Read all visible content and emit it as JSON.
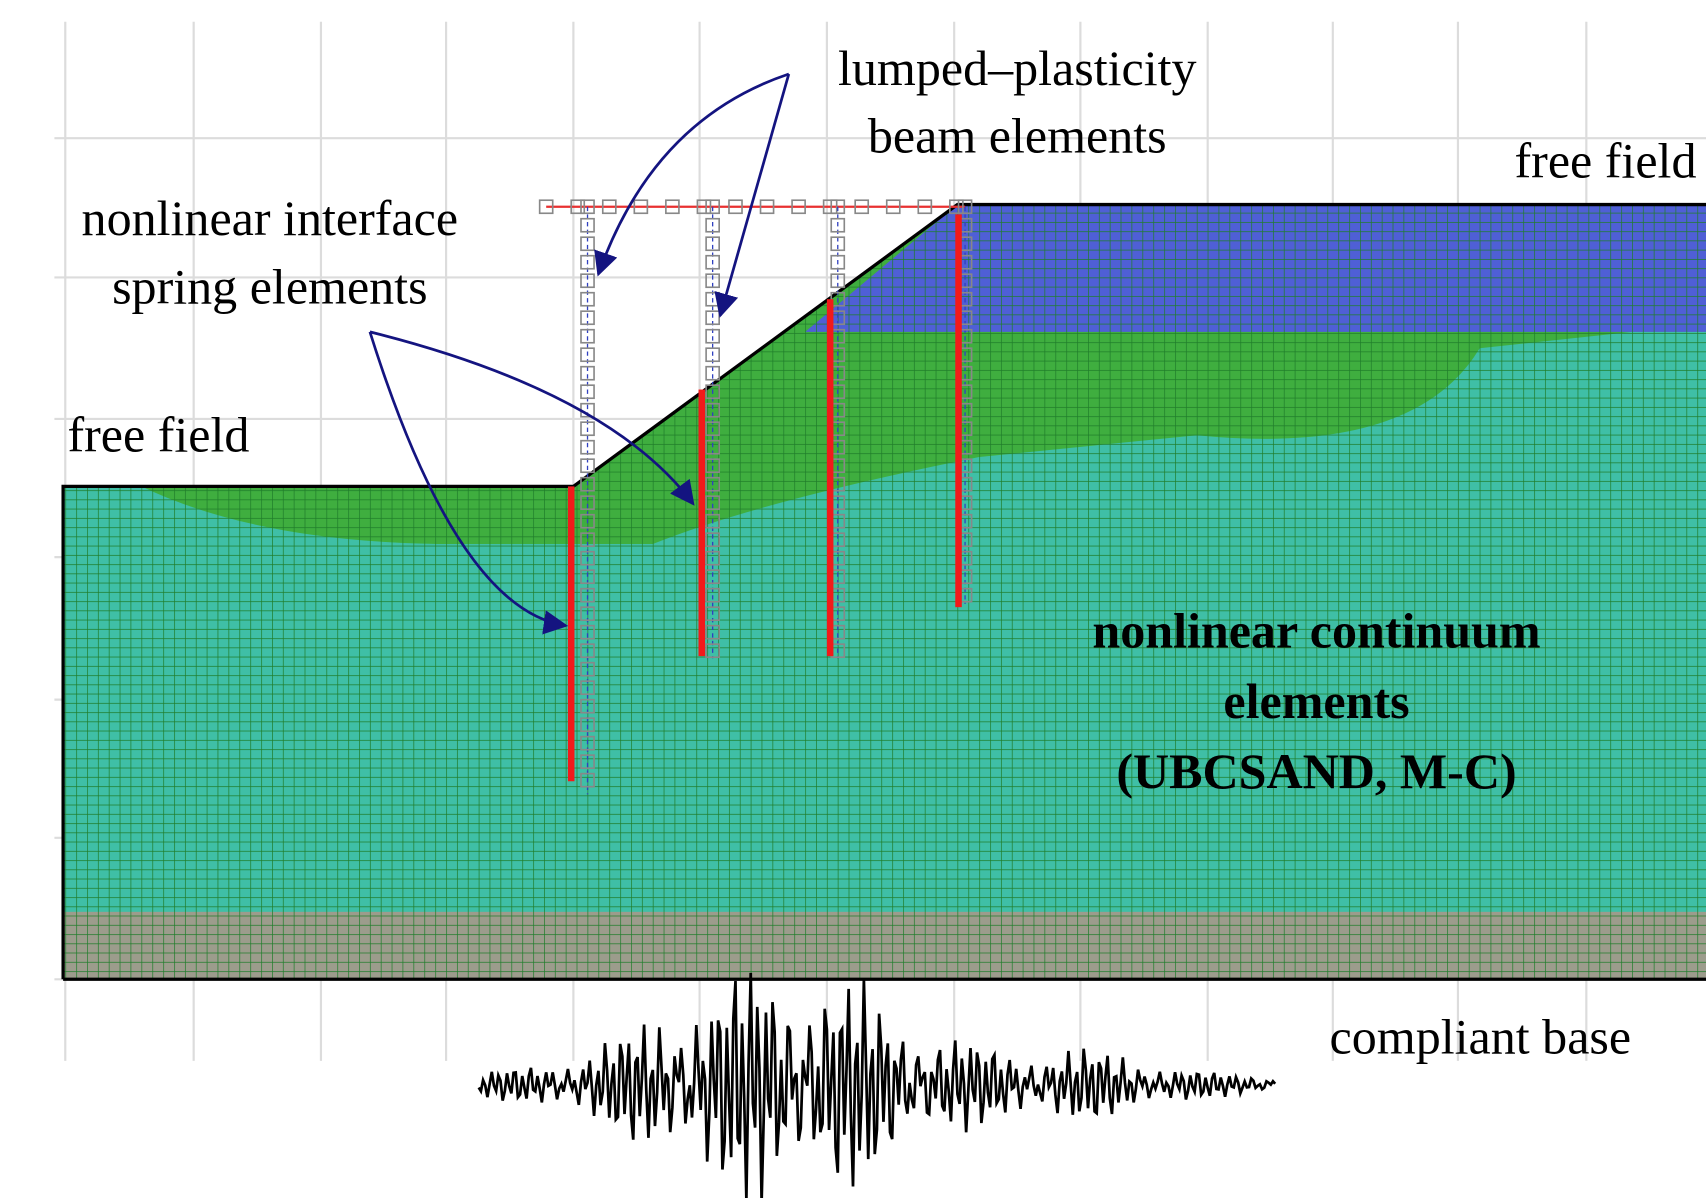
{
  "annotations": {
    "lumped_plasticity": [
      "lumped–plasticity",
      "beam elements"
    ],
    "interface_springs": [
      "nonlinear interface",
      "spring elements"
    ],
    "free_field_left": "free field",
    "free_field_right": "free field",
    "continuum": [
      "nonlinear  continuum",
      "elements",
      "(UBCSAND, M-C)"
    ],
    "compliant_base": "compliant base"
  }
}
